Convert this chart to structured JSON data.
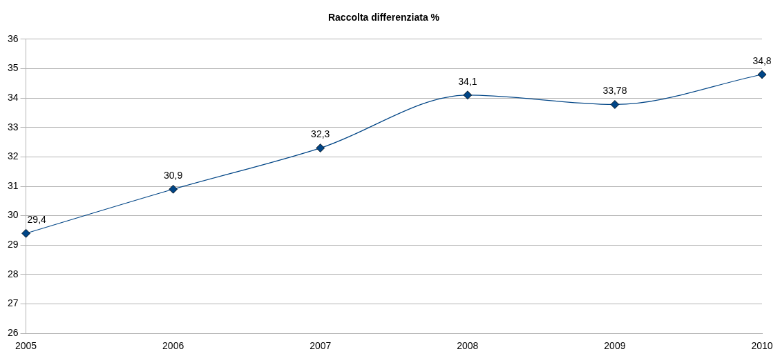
{
  "chart_data": {
    "type": "line",
    "title": "Raccolta differenziata %",
    "categories": [
      "2005",
      "2006",
      "2007",
      "2008",
      "2009",
      "2010"
    ],
    "series": [
      {
        "color": "#004586",
        "values": [
          29.4,
          30.9,
          32.3,
          34.1,
          33.78,
          34.8
        ],
        "value_labels": [
          "29,4",
          "30,9",
          "32,3",
          "34,1",
          "33,78",
          "34,8"
        ]
      }
    ],
    "ylim": [
      26,
      36
    ],
    "yticks": [
      26,
      27,
      28,
      29,
      30,
      31,
      32,
      33,
      34,
      35,
      36
    ],
    "grid": "y",
    "legend": false,
    "marker": "diamond",
    "line_style": "solid"
  }
}
